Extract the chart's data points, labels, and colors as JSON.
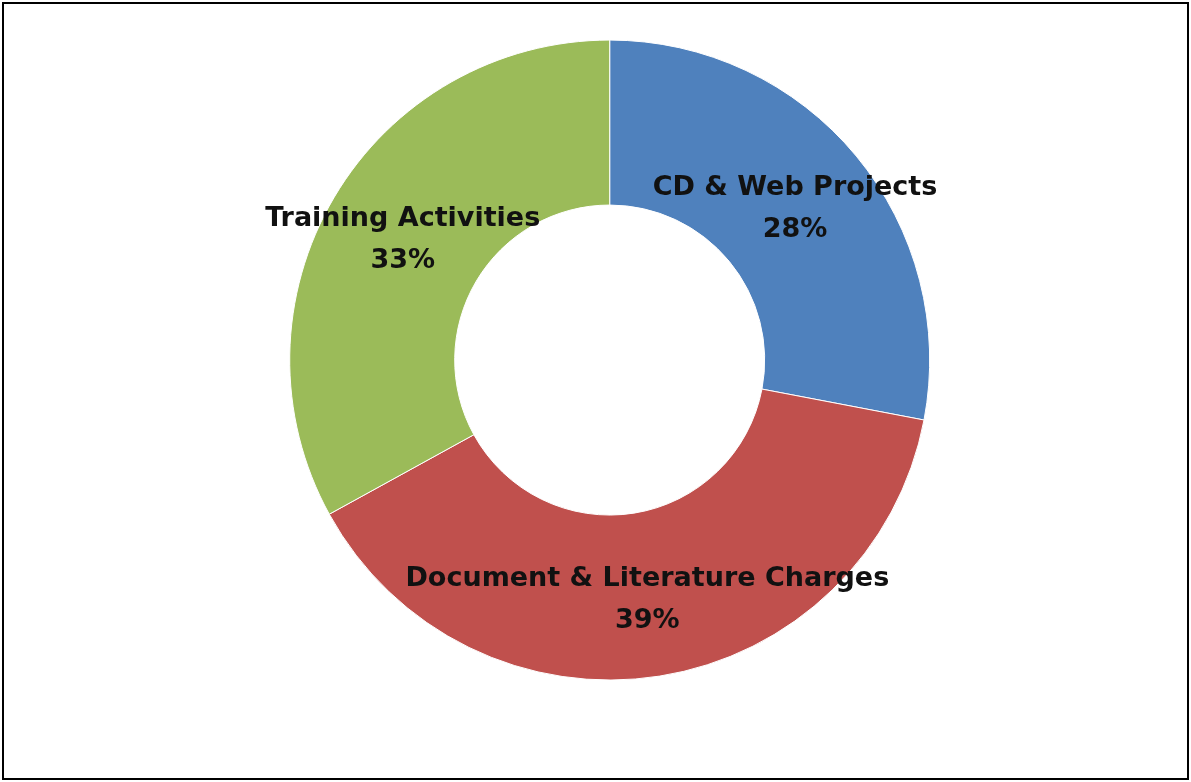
{
  "chart_data": {
    "type": "donut",
    "categories": [
      "CD & Web Projects",
      "Document & Literature Charges",
      "Training Activities"
    ],
    "values": [
      28,
      39,
      33
    ],
    "value_labels": [
      "28%",
      "39%",
      "33%"
    ],
    "colors": [
      "#4f81bd",
      "#c0504d",
      "#9bbb59"
    ],
    "legend": false
  }
}
